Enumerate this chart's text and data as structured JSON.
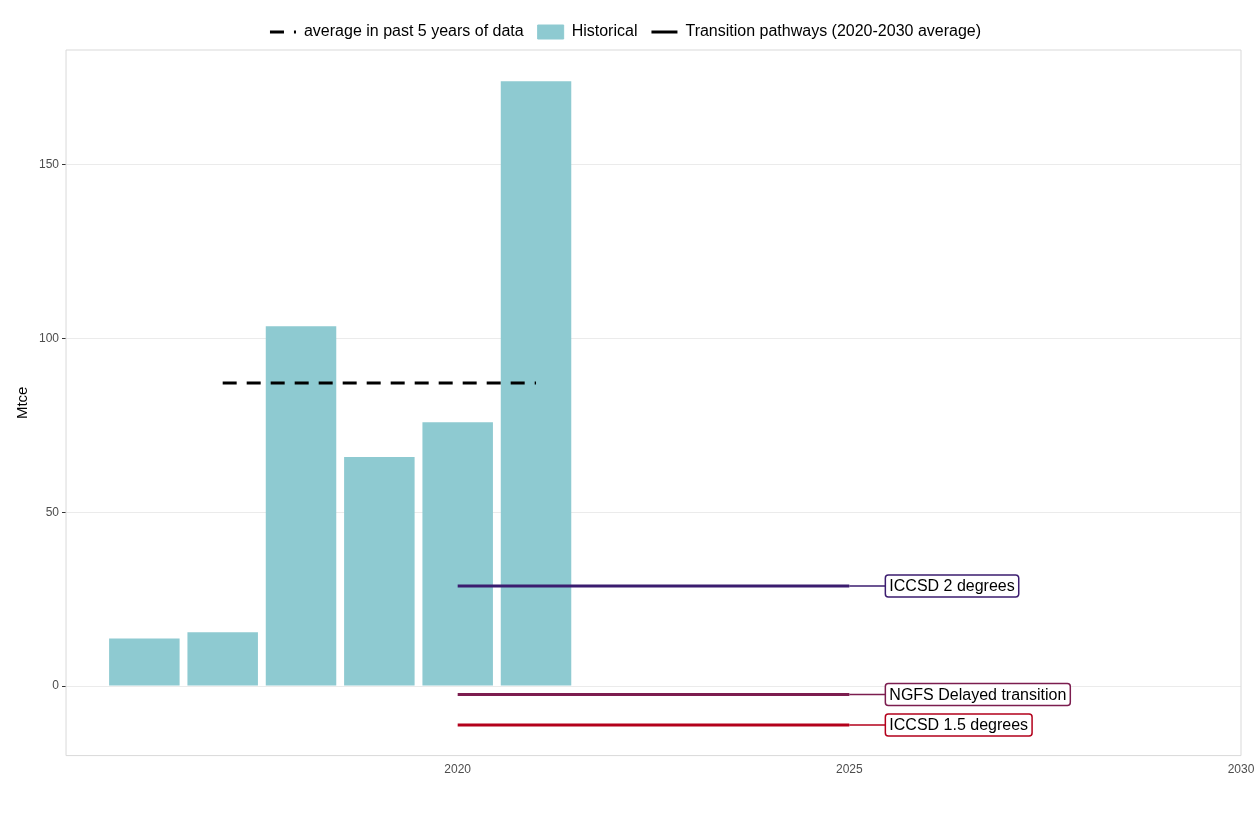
{
  "chart_data": {
    "type": "bar",
    "ylabel": "Mtce",
    "x": [
      2016,
      2017,
      2018,
      2019,
      2020,
      2021
    ],
    "series": [
      {
        "name": "average in past 5 years of data",
        "type": "line",
        "color": "#000000",
        "line_style": "dashed",
        "x": [
          2017,
          2021
        ],
        "values": [
          87.2,
          87.2
        ]
      },
      {
        "name": "Historical",
        "color": "#8ecad1",
        "values": [
          13.7,
          15.5,
          103.5,
          65.9,
          75.9,
          174
        ]
      },
      {
        "name": "ICCSD 2 degrees",
        "type": "line",
        "color": "#3b1c6f",
        "x": [
          2020,
          2025
        ],
        "values": [
          28.8,
          28.8
        ]
      },
      {
        "name": "NGFS Delayed transition",
        "type": "line",
        "color": "#7c1d4f",
        "x": [
          2020,
          2025
        ],
        "values": [
          -2.4,
          -2.4
        ]
      },
      {
        "name": "ICCSD 1.5 degrees",
        "type": "line",
        "color": "#b3001b",
        "x": [
          2020,
          2025
        ],
        "values": [
          -11.2,
          -11.2
        ]
      }
    ],
    "annotations": [
      "Transition pathways (2020-2030 average)"
    ],
    "xlim": [
      2015,
      2030
    ],
    "xticks": [
      2020,
      2025,
      2030
    ],
    "ylim": [
      -20,
      183
    ],
    "yticks": [
      0,
      50,
      100,
      150
    ],
    "grid": "y",
    "legend": "top",
    "marker": "none",
    "line_style": "solid"
  }
}
